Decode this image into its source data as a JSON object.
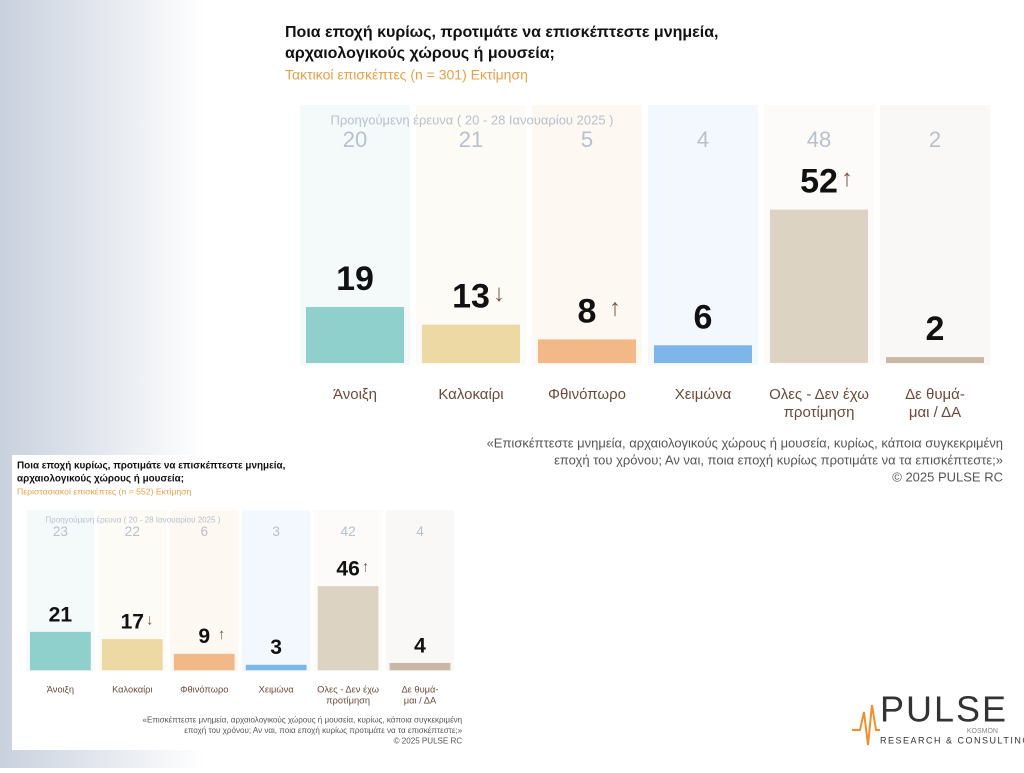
{
  "chart_data": [
    {
      "type": "bar",
      "title": [
        "Ποια εποχή κυρίως, προτιμάτε να επισκέπτεστε μνημεία,",
        "αρχαιολογικούς χώρους ή μουσεία;"
      ],
      "subtitle": "Τακτικοί επισκέπτες  (n = 301)   Εκτίμηση",
      "previous_label": "Προηγούμενη έρευνα ( 20 - 28 Ιανουαρίου 2025 )",
      "previous_values": [
        20,
        21,
        5,
        4,
        48,
        2
      ],
      "categories": [
        [
          "Άνοιξη"
        ],
        [
          "Καλοκαίρι"
        ],
        [
          "Φθινόπωρο"
        ],
        [
          "Χειμώνα"
        ],
        [
          "Ολες - Δεν έχω",
          "προτίμηση"
        ],
        [
          "Δε θυμά-",
          "μαι / ΔΑ"
        ]
      ],
      "values": [
        19,
        13,
        8,
        6,
        52,
        2
      ],
      "changes": [
        null,
        "↓",
        "↑",
        null,
        "↑",
        null
      ],
      "colors": [
        "#8fd0cc",
        "#ecd9a4",
        "#f2b888",
        "#7fb6ea",
        "#ddd3c2",
        "#c9b8a6"
      ],
      "footnote": [
        "«Επισκέπτεστε μνημεία, αρχαιολογικούς χώρους ή μουσεία, κυρίως, κάποια συγκεκριμένη",
        "εποχή του χρόνου; Αν ναι, ποια εποχή κυρίως προτιμάτε να τα επισκέπτεστε;»",
        "©  2025  PULSE RC"
      ]
    },
    {
      "type": "bar",
      "title": [
        "Ποια εποχή κυρίως, προτιμάτε να επισκέπτεστε μνημεία,",
        "αρχαιολογικούς χώρους ή μουσεία;"
      ],
      "subtitle": "Περιστασιακοί επισκέπτες  (n = 552)   Εκτίμηση",
      "previous_label": "Προηγούμενη έρευνα ( 20 - 28 Ιανουαρίου 2025 )",
      "previous_values": [
        23,
        22,
        6,
        3,
        42,
        4
      ],
      "categories": [
        [
          "Άνοιξη"
        ],
        [
          "Καλοκαίρι"
        ],
        [
          "Φθινόπωρο"
        ],
        [
          "Χειμώνα"
        ],
        [
          "Ολες - Δεν έχω",
          "προτίμηση"
        ],
        [
          "Δε θυμά-",
          "μαι / ΔΑ"
        ]
      ],
      "values": [
        21,
        17,
        9,
        3,
        46,
        4
      ],
      "changes": [
        null,
        "↓",
        "↑",
        null,
        "↑",
        null
      ],
      "colors": [
        "#8fd0cc",
        "#ecd9a4",
        "#f2b888",
        "#7fb6ea",
        "#ddd3c2",
        "#c9b8a6"
      ],
      "footnote": [
        "«Επισκέπτεστε μνημεία, αρχαιολογικούς χώρους ή μουσεία, κυρίως, κάποια συγκεκριμένη",
        "εποχή του χρόνου; Αν ναι, ποια εποχή κυρίως προτιμάτε να τα επισκέπτεστε;»",
        "©  2025  PULSE RC"
      ]
    }
  ],
  "logo": {
    "name": "PULSE",
    "tag": "KOSMON",
    "line": "RESEARCH & CONSULTING"
  }
}
